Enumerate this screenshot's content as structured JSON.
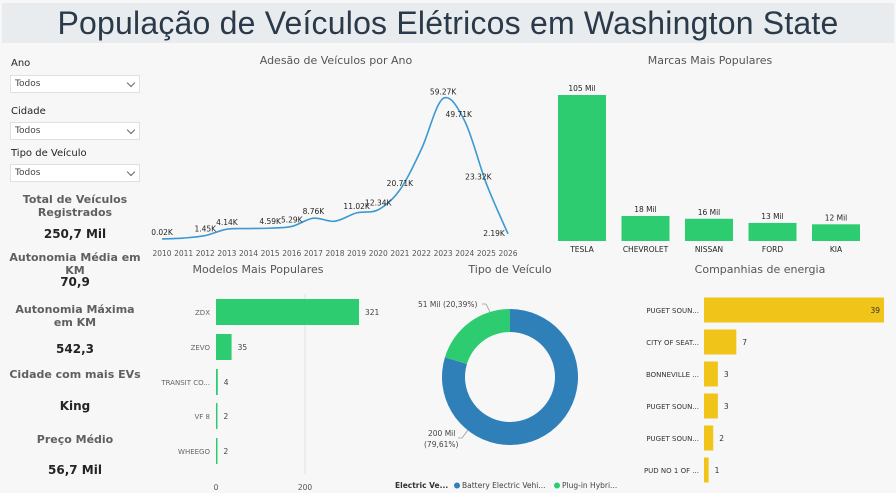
{
  "title": "População de Veículos Elétricos em Washington State",
  "filters": [
    {
      "label": "Ano",
      "value": "Todos"
    },
    {
      "label": "Cidade",
      "value": "Todos"
    },
    {
      "label": "Tipo de Veículo",
      "value": "Todos"
    }
  ],
  "kpis": [
    {
      "label": "Total de Veículos Registrados",
      "value": "250,7 Mil"
    },
    {
      "label": "Autonomia Média em KM",
      "value": "70,9"
    },
    {
      "label": "Autonomia Máxima em KM",
      "value": "542,3"
    },
    {
      "label": "Cidade com mais EVs",
      "value": "King"
    },
    {
      "label": "Preço Médio",
      "value": "56,7 Mil"
    }
  ],
  "colors": {
    "green": "#2ecc71",
    "yellow": "#f0c419",
    "blue": "#2f80b9",
    "line": "#3c9ad1"
  },
  "chart_data": [
    {
      "type": "line",
      "title": "Adesão de Veículos por Ano",
      "x": [
        "2010",
        "2011",
        "2012",
        "2013",
        "2014",
        "2015",
        "2016",
        "2017",
        "2018",
        "2019",
        "2020",
        "2021",
        "2022",
        "2023",
        "2024",
        "2025",
        "2026"
      ],
      "values": [
        0.02,
        0.4,
        1.45,
        4.14,
        4.4,
        4.59,
        5.29,
        8.76,
        7.5,
        11.02,
        12.34,
        20.71,
        38.0,
        59.27,
        49.71,
        23.32,
        2.19
      ],
      "labels": [
        "0.02K",
        "",
        "1.45K",
        "4.14K",
        "",
        "4.59K",
        "5.29K",
        "8.76K",
        "",
        "11.02K",
        "12.34K",
        "20.71K",
        "",
        "59.27K",
        "49.71K",
        "23.32K",
        "2.19K"
      ],
      "ylim": [
        0,
        62
      ]
    },
    {
      "type": "bar",
      "title": "Marcas Mais Populares",
      "categories": [
        "TESLA",
        "CHEVROLET",
        "NISSAN",
        "FORD",
        "KIA"
      ],
      "values": [
        105,
        18,
        16,
        13,
        12
      ],
      "labels": [
        "105 Mil",
        "18 Mil",
        "16 Mil",
        "13 Mil",
        "12 Mil"
      ]
    },
    {
      "type": "bar",
      "title": "Modelos Mais Populares",
      "orientation": "horizontal",
      "categories": [
        "ZDX",
        "ZEVO",
        "TRANSIT CO...",
        "VF 8",
        "WHEEGO"
      ],
      "values": [
        321,
        35,
        4,
        2,
        2
      ],
      "xticks": [
        "0",
        "200"
      ],
      "xlim": [
        0,
        330
      ]
    },
    {
      "type": "pie",
      "title": "Tipo de Veículo",
      "slices": [
        {
          "name": "Battery Electric Vehi...",
          "value": 200,
          "label": "200 Mil (79,61%)",
          "label_line1": "200 Mil",
          "label_line2": "(79,61%)"
        },
        {
          "name": "Plug-in Hybri...",
          "value": 51,
          "label": "51 Mil (20,39%)",
          "label_line1": "51 Mil (20,39%)"
        }
      ],
      "legend_title": "Electric Ve..."
    },
    {
      "type": "bar",
      "title": "Companhias de energia",
      "orientation": "horizontal",
      "categories": [
        "PUGET SOUN...",
        "CITY OF SEAT...",
        "BONNEVILLE ...",
        "PUGET SOUN...",
        "PUGET SOUN...",
        "PUD NO 1 OF ..."
      ],
      "values": [
        39,
        7,
        3,
        3,
        2,
        1
      ]
    }
  ]
}
